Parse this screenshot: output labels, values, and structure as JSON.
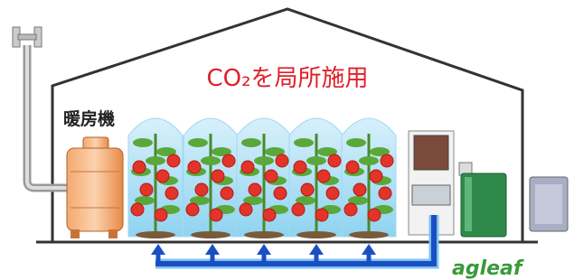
{
  "title": "CO₂を局所施用",
  "heater_label": "暖房機",
  "logo": "agleaf"
}
